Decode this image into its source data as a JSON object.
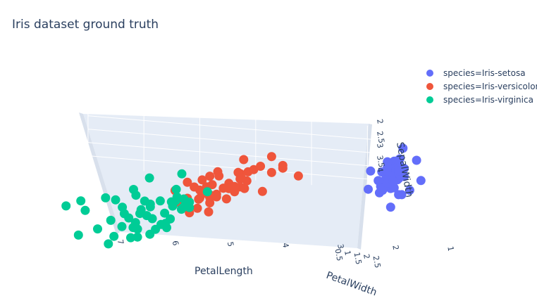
{
  "chart_data": {
    "type": "scatter",
    "title": "Iris dataset ground truth",
    "axes": {
      "x": {
        "label": "PetalLength",
        "range": [
          1,
          7
        ],
        "ticks": [
          "1",
          "2",
          "3",
          "4",
          "5",
          "6",
          "7"
        ]
      },
      "y": {
        "label": "PetalWidth",
        "range": [
          0,
          2.5
        ],
        "ticks": [
          "0.5",
          "1",
          "1.5",
          "2",
          "2.5"
        ]
      },
      "z": {
        "label": "SepalWidth",
        "range": [
          2,
          4.4
        ],
        "ticks": [
          "2",
          "2.5",
          "3",
          "3.5",
          "4"
        ]
      }
    },
    "legend_position": "top-right",
    "grid": true,
    "series": [
      {
        "name": "species=Iris-setosa",
        "color": "#636efa",
        "points": [
          [
            1.4,
            0.2,
            3.5
          ],
          [
            1.4,
            0.2,
            3.0
          ],
          [
            1.3,
            0.2,
            3.2
          ],
          [
            1.5,
            0.2,
            3.1
          ],
          [
            1.4,
            0.2,
            3.6
          ],
          [
            1.7,
            0.4,
            3.9
          ],
          [
            1.4,
            0.3,
            3.4
          ],
          [
            1.5,
            0.2,
            3.4
          ],
          [
            1.4,
            0.2,
            2.9
          ],
          [
            1.5,
            0.1,
            3.1
          ],
          [
            1.5,
            0.2,
            3.7
          ],
          [
            1.6,
            0.2,
            3.4
          ],
          [
            1.4,
            0.1,
            3.0
          ],
          [
            1.1,
            0.1,
            3.0
          ],
          [
            1.2,
            0.2,
            4.0
          ],
          [
            1.5,
            0.4,
            4.4
          ],
          [
            1.3,
            0.4,
            3.9
          ],
          [
            1.4,
            0.3,
            3.5
          ],
          [
            1.7,
            0.3,
            3.8
          ],
          [
            1.5,
            0.3,
            3.8
          ],
          [
            1.7,
            0.2,
            3.4
          ],
          [
            1.5,
            0.4,
            3.7
          ],
          [
            1.0,
            0.2,
            3.6
          ],
          [
            1.7,
            0.5,
            3.3
          ],
          [
            1.9,
            0.2,
            3.4
          ],
          [
            1.6,
            0.2,
            3.0
          ],
          [
            1.6,
            0.4,
            3.4
          ],
          [
            1.5,
            0.2,
            3.5
          ],
          [
            1.4,
            0.2,
            3.4
          ],
          [
            1.6,
            0.2,
            3.2
          ],
          [
            1.5,
            0.4,
            3.4
          ],
          [
            1.5,
            0.1,
            4.1
          ],
          [
            1.4,
            0.2,
            4.2
          ],
          [
            1.3,
            0.2,
            3.5
          ],
          [
            1.3,
            0.3,
            2.3
          ],
          [
            1.3,
            0.2,
            3.2
          ],
          [
            1.6,
            0.6,
            3.5
          ],
          [
            1.9,
            0.4,
            3.8
          ],
          [
            1.4,
            0.3,
            3.0
          ],
          [
            1.6,
            0.2,
            3.8
          ],
          [
            1.4,
            0.2,
            3.2
          ],
          [
            1.5,
            0.2,
            3.7
          ],
          [
            1.4,
            0.2,
            3.3
          ]
        ]
      },
      {
        "name": "species=Iris-versicolor",
        "color": "#ef553b",
        "points": [
          [
            4.7,
            1.4,
            3.2
          ],
          [
            4.5,
            1.5,
            3.2
          ],
          [
            4.9,
            1.5,
            3.1
          ],
          [
            4.0,
            1.3,
            2.3
          ],
          [
            4.6,
            1.5,
            2.8
          ],
          [
            4.5,
            1.3,
            2.8
          ],
          [
            4.7,
            1.6,
            3.3
          ],
          [
            3.3,
            1.0,
            2.4
          ],
          [
            4.6,
            1.3,
            2.9
          ],
          [
            3.9,
            1.4,
            2.7
          ],
          [
            3.5,
            1.0,
            2.0
          ],
          [
            4.2,
            1.5,
            3.0
          ],
          [
            4.0,
            1.0,
            2.2
          ],
          [
            4.7,
            1.4,
            2.9
          ],
          [
            3.6,
            1.3,
            2.9
          ],
          [
            4.4,
            1.4,
            3.1
          ],
          [
            4.5,
            1.5,
            3.0
          ],
          [
            4.1,
            1.0,
            2.7
          ],
          [
            4.5,
            1.5,
            2.2
          ],
          [
            3.9,
            1.1,
            2.5
          ],
          [
            4.8,
            1.8,
            3.2
          ],
          [
            4.0,
            1.3,
            2.8
          ],
          [
            4.9,
            1.5,
            2.5
          ],
          [
            4.7,
            1.2,
            2.8
          ],
          [
            4.3,
            1.3,
            2.9
          ],
          [
            4.4,
            1.4,
            3.0
          ],
          [
            4.8,
            1.4,
            2.8
          ],
          [
            5.0,
            1.7,
            3.0
          ],
          [
            4.5,
            1.5,
            2.9
          ],
          [
            3.5,
            1.0,
            2.6
          ],
          [
            3.8,
            1.1,
            2.4
          ],
          [
            3.7,
            1.0,
            2.4
          ],
          [
            3.9,
            1.2,
            2.7
          ],
          [
            5.1,
            1.6,
            2.7
          ],
          [
            4.5,
            1.5,
            3.0
          ],
          [
            4.5,
            1.6,
            3.4
          ],
          [
            4.7,
            1.5,
            3.1
          ],
          [
            4.4,
            1.3,
            2.3
          ],
          [
            4.1,
            1.3,
            3.0
          ],
          [
            4.0,
            1.3,
            2.5
          ],
          [
            4.4,
            1.2,
            2.6
          ],
          [
            4.6,
            1.4,
            3.0
          ],
          [
            4.0,
            1.2,
            2.6
          ],
          [
            3.3,
            1.0,
            2.3
          ],
          [
            4.2,
            1.3,
            2.7
          ],
          [
            4.2,
            1.2,
            3.0
          ],
          [
            4.2,
            1.3,
            2.9
          ],
          [
            4.3,
            1.3,
            2.9
          ],
          [
            3.0,
            1.1,
            2.5
          ],
          [
            4.1,
            1.3,
            2.8
          ]
        ]
      },
      {
        "name": "species=Iris-virginica",
        "color": "#00cc96",
        "points": [
          [
            6.0,
            2.5,
            3.3
          ],
          [
            5.1,
            1.9,
            2.7
          ],
          [
            5.9,
            2.1,
            3.0
          ],
          [
            5.6,
            1.8,
            2.9
          ],
          [
            5.8,
            2.2,
            3.0
          ],
          [
            6.6,
            2.1,
            3.0
          ],
          [
            4.5,
            1.7,
            2.5
          ],
          [
            6.3,
            1.8,
            2.9
          ],
          [
            5.8,
            1.8,
            2.5
          ],
          [
            6.1,
            2.5,
            3.6
          ],
          [
            5.1,
            2.0,
            3.2
          ],
          [
            5.3,
            1.9,
            2.7
          ],
          [
            5.5,
            2.1,
            3.0
          ],
          [
            5.0,
            2.0,
            2.5
          ],
          [
            5.1,
            2.4,
            2.8
          ],
          [
            5.3,
            2.3,
            3.2
          ],
          [
            5.5,
            1.8,
            3.0
          ],
          [
            6.7,
            2.2,
            3.8
          ],
          [
            6.9,
            2.3,
            2.6
          ],
          [
            5.0,
            1.5,
            2.2
          ],
          [
            5.7,
            2.3,
            3.2
          ],
          [
            4.9,
            2.0,
            2.8
          ],
          [
            6.7,
            2.0,
            2.8
          ],
          [
            4.9,
            1.8,
            2.7
          ],
          [
            5.7,
            2.1,
            3.3
          ],
          [
            6.0,
            1.8,
            3.2
          ],
          [
            4.8,
            1.8,
            2.8
          ],
          [
            4.9,
            1.8,
            3.0
          ],
          [
            5.6,
            2.1,
            2.8
          ],
          [
            5.8,
            1.6,
            3.0
          ],
          [
            6.1,
            1.9,
            2.8
          ],
          [
            6.4,
            2.0,
            3.8
          ],
          [
            5.6,
            2.2,
            2.8
          ],
          [
            5.1,
            1.5,
            2.8
          ],
          [
            5.6,
            1.4,
            2.6
          ],
          [
            6.1,
            2.3,
            3.0
          ],
          [
            5.6,
            2.4,
            3.4
          ],
          [
            5.5,
            1.8,
            3.1
          ],
          [
            4.8,
            1.8,
            3.0
          ],
          [
            5.4,
            2.1,
            3.1
          ],
          [
            5.6,
            2.4,
            3.1
          ],
          [
            5.1,
            2.3,
            3.1
          ],
          [
            5.9,
            2.3,
            3.2
          ],
          [
            5.7,
            2.5,
            3.3
          ],
          [
            5.2,
            2.3,
            3.0
          ],
          [
            5.0,
            1.9,
            2.5
          ],
          [
            5.2,
            2.0,
            3.0
          ],
          [
            5.4,
            2.3,
            3.4
          ],
          [
            5.1,
            1.8,
            3.0
          ]
        ]
      }
    ]
  }
}
